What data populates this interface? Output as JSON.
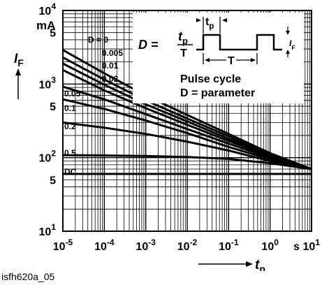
{
  "figure_id": "isfh620a_05",
  "chart_data": {
    "type": "line",
    "x_scale": "log",
    "y_scale": "log",
    "xlim": [
      1e-05,
      10
    ],
    "ylim": [
      10,
      10000
    ],
    "x_ticks": [
      {
        "value": 1e-05,
        "base": "10",
        "exp": "-5"
      },
      {
        "value": 0.0001,
        "base": "10",
        "exp": "-4"
      },
      {
        "value": 0.001,
        "base": "10",
        "exp": "-3"
      },
      {
        "value": 0.01,
        "base": "10",
        "exp": "-2"
      },
      {
        "value": 0.1,
        "base": "10",
        "exp": "-1"
      },
      {
        "value": 1,
        "base": "10",
        "exp": "0"
      },
      {
        "value": 10,
        "base": "s 10",
        "exp": "1"
      }
    ],
    "y_ticks": [
      {
        "value": 10,
        "base": "10",
        "exp": "1"
      },
      {
        "value": 50,
        "base": "5",
        "exp": ""
      },
      {
        "value": 100,
        "base": "10",
        "exp": "2"
      },
      {
        "value": 500,
        "base": "5",
        "exp": ""
      },
      {
        "value": 1000,
        "base": "10",
        "exp": "3"
      },
      {
        "value": 5000,
        "base": "5",
        "exp": ""
      },
      {
        "value": 10000,
        "base": "10",
        "exp": "4"
      }
    ],
    "y_unit": "mA",
    "y_symbol": "I",
    "y_symbol_sub": "F",
    "x_symbol": "t",
    "x_symbol_sub": "p",
    "grid": true,
    "series": [
      {
        "name": "D = 0",
        "x": [
          1e-05,
          0.0001,
          0.001,
          0.01,
          0.1,
          1,
          10
        ],
        "y": [
          2900,
          1400,
          700,
          380,
          210,
          115,
          70
        ]
      },
      {
        "name": "0.005",
        "x": [
          1e-05,
          0.0001,
          0.001,
          0.01,
          0.1,
          1,
          10
        ],
        "y": [
          2300,
          1150,
          600,
          340,
          195,
          110,
          70
        ]
      },
      {
        "name": "0.01",
        "x": [
          1e-05,
          0.0001,
          0.001,
          0.01,
          0.1,
          1,
          10
        ],
        "y": [
          1900,
          980,
          530,
          310,
          180,
          108,
          70
        ]
      },
      {
        "name": "0.02",
        "x": [
          1e-05,
          0.0001,
          0.001,
          0.01,
          0.1,
          1,
          10
        ],
        "y": [
          1550,
          820,
          470,
          280,
          168,
          105,
          70
        ]
      },
      {
        "name": "0.05",
        "x": [
          1e-05,
          0.0001,
          0.001,
          0.01,
          0.1,
          1,
          10
        ],
        "y": [
          920,
          620,
          390,
          245,
          155,
          100,
          70
        ]
      },
      {
        "name": "0.1",
        "x": [
          1e-05,
          0.0001,
          0.001,
          0.01,
          0.1,
          1,
          10
        ],
        "y": [
          620,
          460,
          320,
          215,
          140,
          95,
          70
        ]
      },
      {
        "name": "0.2",
        "x": [
          1e-05,
          0.0001,
          0.001,
          0.01,
          0.1,
          1,
          10
        ],
        "y": [
          300,
          255,
          210,
          165,
          125,
          90,
          70
        ]
      },
      {
        "name": "0.5",
        "x": [
          1e-05,
          0.0001,
          0.001,
          0.01,
          0.1,
          1,
          10
        ],
        "y": [
          108,
          107,
          105,
          102,
          96,
          84,
          70
        ]
      },
      {
        "name": "DC",
        "x": [
          1e-05,
          10
        ],
        "y": [
          60,
          60
        ]
      }
    ],
    "inset": {
      "formula_lhs": "D =",
      "numerator": "t",
      "numerator_sub": "p",
      "denominator": "T",
      "pulse_label": "t",
      "pulse_label_sub": "p",
      "period_label": "T",
      "current_label": "I",
      "current_label_sub": "F",
      "caption_line1": "Pulse cycle",
      "caption_line2": "D = parameter"
    }
  }
}
